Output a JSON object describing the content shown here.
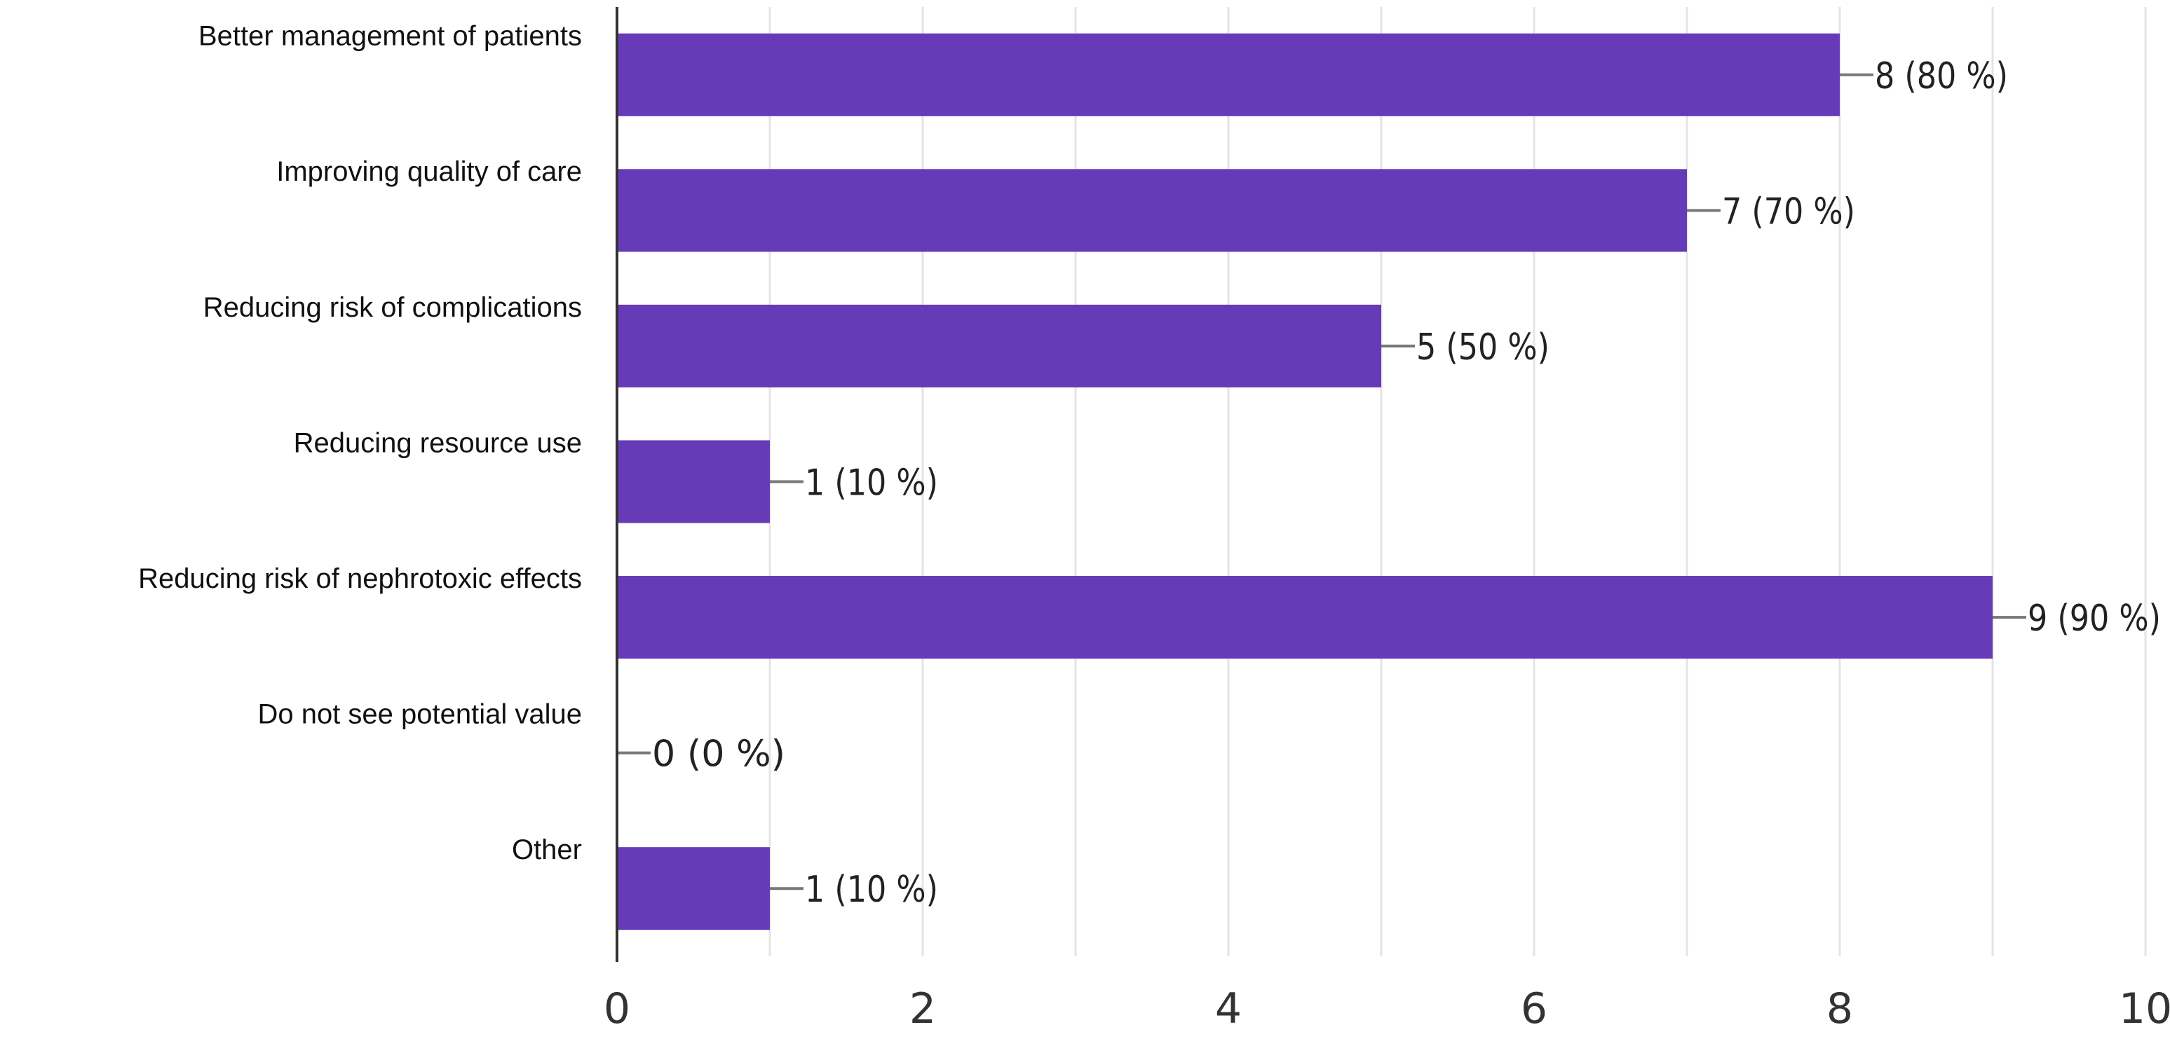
{
  "chart_data": {
    "type": "bar",
    "orientation": "horizontal",
    "categories": [
      "Better management of patients",
      "Improving quality of care",
      "Reducing risk of complications",
      "Reducing resource use",
      "Reducing risk of nephrotoxic effects",
      "Do not see potential value",
      "Other"
    ],
    "values": [
      8,
      7,
      5,
      1,
      9,
      0,
      1
    ],
    "data_labels": [
      "8 (80 %)",
      "7 (70 %)",
      "5 (50 %)",
      "1 (10 %)",
      "9 (90 %)",
      "0 (0 %)",
      "1 (10 %)"
    ],
    "xlim": [
      0,
      10
    ],
    "xticks": [
      "0",
      "2",
      "4",
      "6",
      "8",
      "10"
    ],
    "grid": true,
    "bar_color": "#673ab7",
    "title": "",
    "xlabel": "",
    "ylabel": ""
  }
}
